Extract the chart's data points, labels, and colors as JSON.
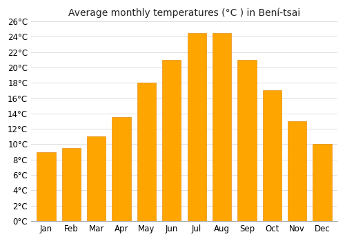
{
  "title": "Average monthly temperatures (°C ) in Bení-tsai",
  "months": [
    "Jan",
    "Feb",
    "Mar",
    "Apr",
    "May",
    "Jun",
    "Jul",
    "Aug",
    "Sep",
    "Oct",
    "Nov",
    "Dec"
  ],
  "values": [
    9.0,
    9.5,
    11.0,
    13.5,
    18.0,
    21.0,
    24.5,
    24.5,
    21.0,
    17.0,
    13.0,
    10.0
  ],
  "ylim": [
    0,
    26
  ],
  "yticks": [
    0,
    2,
    4,
    6,
    8,
    10,
    12,
    14,
    16,
    18,
    20,
    22,
    24,
    26
  ],
  "ytick_labels": [
    "0°C",
    "2°C",
    "4°C",
    "6°C",
    "8°C",
    "10°C",
    "12°C",
    "14°C",
    "16°C",
    "18°C",
    "20°C",
    "22°C",
    "24°C",
    "26°C"
  ],
  "bar_color": "#FFA500",
  "bar_edge_color": "#E08000",
  "grid_color": "#dddddd",
  "bg_color": "#ffffff",
  "title_fontsize": 10,
  "tick_fontsize": 8.5,
  "bar_width": 0.75
}
